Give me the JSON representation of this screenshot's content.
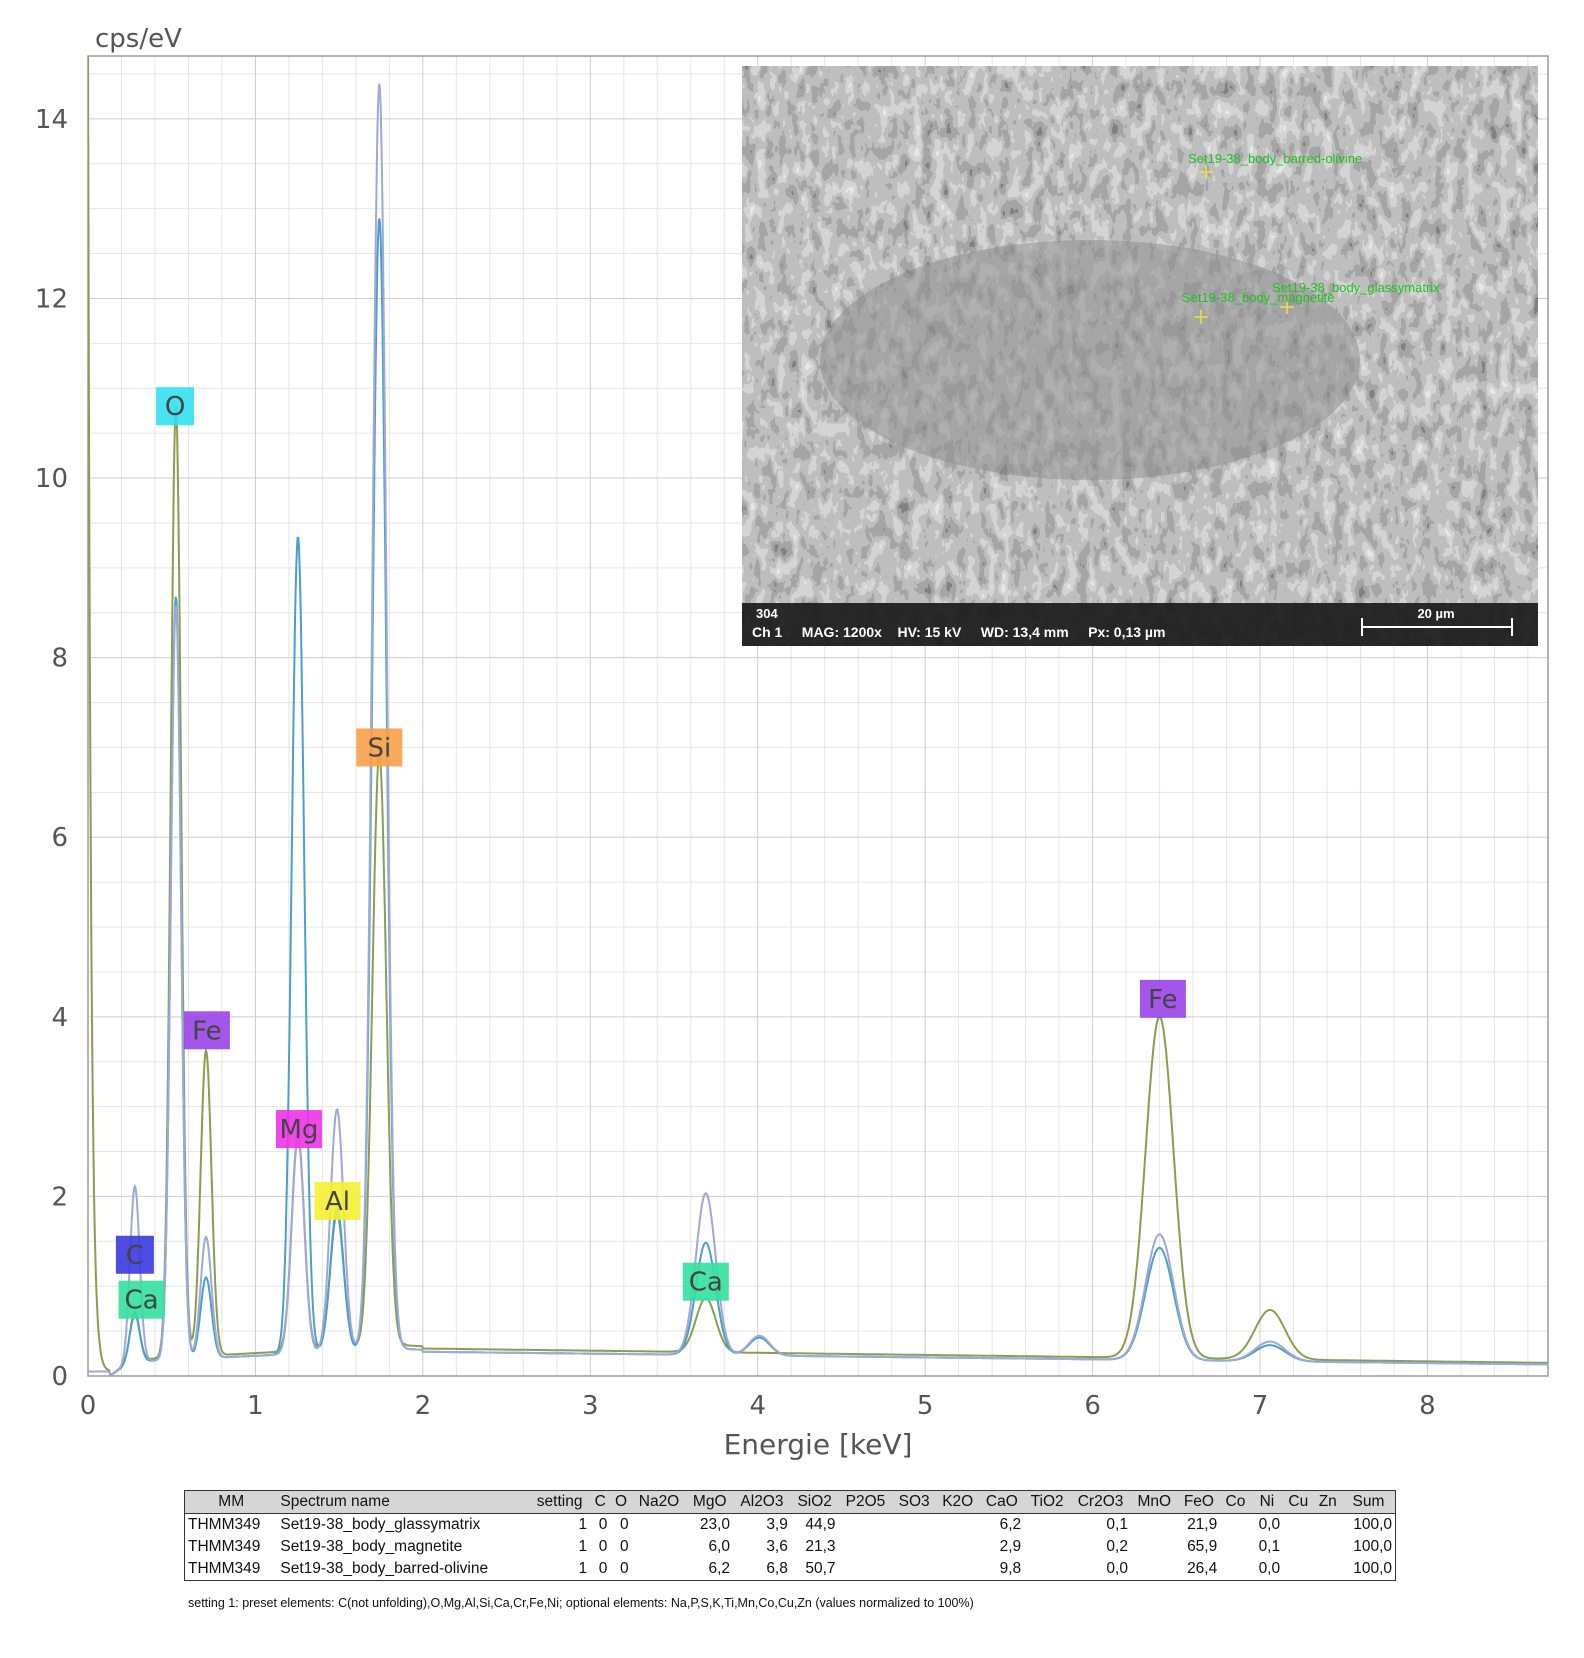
{
  "chart_data": {
    "type": "line",
    "xlabel": "Energie [keV]",
    "ylabel": "cps/eV",
    "xlim": [
      0,
      8.72
    ],
    "ylim": [
      0,
      14.7
    ],
    "x_ticks": [
      "0",
      "1",
      "2",
      "3",
      "4",
      "5",
      "6",
      "7",
      "8"
    ],
    "y_ticks": [
      "0",
      "2",
      "4",
      "6",
      "8",
      "10",
      "12",
      "14"
    ],
    "grid": true,
    "series": [
      {
        "color": "#8a9e52",
        "background": 0.34,
        "peaks": [
          [
            0.28,
            0.5
          ],
          [
            0.525,
            10.6
          ],
          [
            0.705,
            3.4
          ],
          [
            1.254,
            2.4
          ],
          [
            1.487,
            1.5
          ],
          [
            1.74,
            6.6
          ],
          [
            3.69,
            0.6
          ],
          [
            6.4,
            3.8
          ],
          [
            7.06,
            0.55
          ]
        ],
        "low_end": [
          0.0,
          14.7
        ]
      },
      {
        "color": "#4aa0c8",
        "background": 0.3,
        "peaks": [
          [
            0.28,
            0.55
          ],
          [
            0.525,
            8.5
          ],
          [
            0.705,
            0.9
          ],
          [
            1.254,
            9.1
          ],
          [
            1.487,
            1.6
          ],
          [
            1.74,
            12.6
          ],
          [
            3.69,
            1.25
          ],
          [
            4.01,
            0.2
          ],
          [
            6.4,
            1.25
          ],
          [
            7.06,
            0.18
          ]
        ],
        "low_end": [
          0.0,
          0.0
        ]
      },
      {
        "color": "#a0a8d8",
        "background": 0.3,
        "peaks": [
          [
            0.28,
            1.95
          ],
          [
            0.525,
            8.4
          ],
          [
            0.705,
            1.35
          ],
          [
            1.254,
            2.4
          ],
          [
            1.487,
            2.7
          ],
          [
            1.74,
            14.1
          ],
          [
            3.69,
            1.8
          ],
          [
            4.01,
            0.22
          ],
          [
            6.4,
            1.4
          ],
          [
            7.06,
            0.22
          ]
        ],
        "low_end": [
          0.0,
          0.0
        ]
      }
    ],
    "annotations": [
      {
        "text": "O",
        "x": 0.52,
        "y": 10.8,
        "color": "#33e0f0"
      },
      {
        "text": "Si",
        "x": 1.74,
        "y": 7.0,
        "color": "#f7a048"
      },
      {
        "text": "Fe",
        "x": 0.71,
        "y": 3.85,
        "color": "#9a44e8"
      },
      {
        "text": "Mg",
        "x": 1.26,
        "y": 2.75,
        "color": "#f033e8"
      },
      {
        "text": "Al",
        "x": 1.49,
        "y": 1.95,
        "color": "#f4f033"
      },
      {
        "text": "C",
        "x": 0.28,
        "y": 1.35,
        "color": "#3a38e0"
      },
      {
        "text": "Ca",
        "x": 0.32,
        "y": 0.85,
        "color": "#33e0a0"
      },
      {
        "text": "Ca",
        "x": 3.69,
        "y": 1.05,
        "color": "#33e0a0"
      },
      {
        "text": "Fe",
        "x": 6.42,
        "y": 4.2,
        "color": "#9a44e8"
      }
    ]
  },
  "inset_image": {
    "spot_labels": [
      "Set19-38_body_barred-olivine",
      "Set19-38_body_glassymatrix",
      "Set19-38_body_magnetite"
    ],
    "info_top": "304",
    "info_bottom": "Ch 1     MAG: 1200x    HV: 15 kV     WD: 13,4 mm     Px: 0,13 µm",
    "scale_label": "20 µm"
  },
  "table": {
    "headers": [
      "MM",
      "Spectrum name",
      "setting",
      "C",
      "O",
      "Na2O",
      "MgO",
      "Al2O3",
      "SiO2",
      "P2O5",
      "SO3",
      "K2O",
      "CaO",
      "TiO2",
      "Cr2O3",
      "MnO",
      "FeO",
      "Co",
      "Ni",
      "Cu",
      "Zn",
      "Sum"
    ],
    "rows": [
      [
        "THMM349",
        "Set19-38_body_glassymatrix",
        "1",
        "0",
        "0",
        "",
        "23,0",
        "3,9",
        "44,9",
        "",
        "",
        "",
        "6,2",
        "",
        "0,1",
        "",
        "21,9",
        "",
        "0,0",
        "",
        "",
        "100,0"
      ],
      [
        "THMM349",
        "Set19-38_body_magnetite",
        "1",
        "0",
        "0",
        "",
        "6,0",
        "3,6",
        "21,3",
        "",
        "",
        "",
        "2,9",
        "",
        "0,2",
        "",
        "65,9",
        "",
        "0,1",
        "",
        "",
        "100,0"
      ],
      [
        "THMM349",
        "Set19-38_body_barred-olivine",
        "1",
        "0",
        "0",
        "",
        "6,2",
        "6,8",
        "50,7",
        "",
        "",
        "",
        "9,8",
        "",
        "0,0",
        "",
        "26,4",
        "",
        "0,0",
        "",
        "",
        "100,0"
      ]
    ],
    "footnote": "setting 1: preset elements: C(not unfolding),O,Mg,Al,Si,Ca,Cr,Fe,Ni; optional elements: Na,P,S,K,Ti,Mn,Co,Cu,Zn (values normalized to 100%)"
  }
}
